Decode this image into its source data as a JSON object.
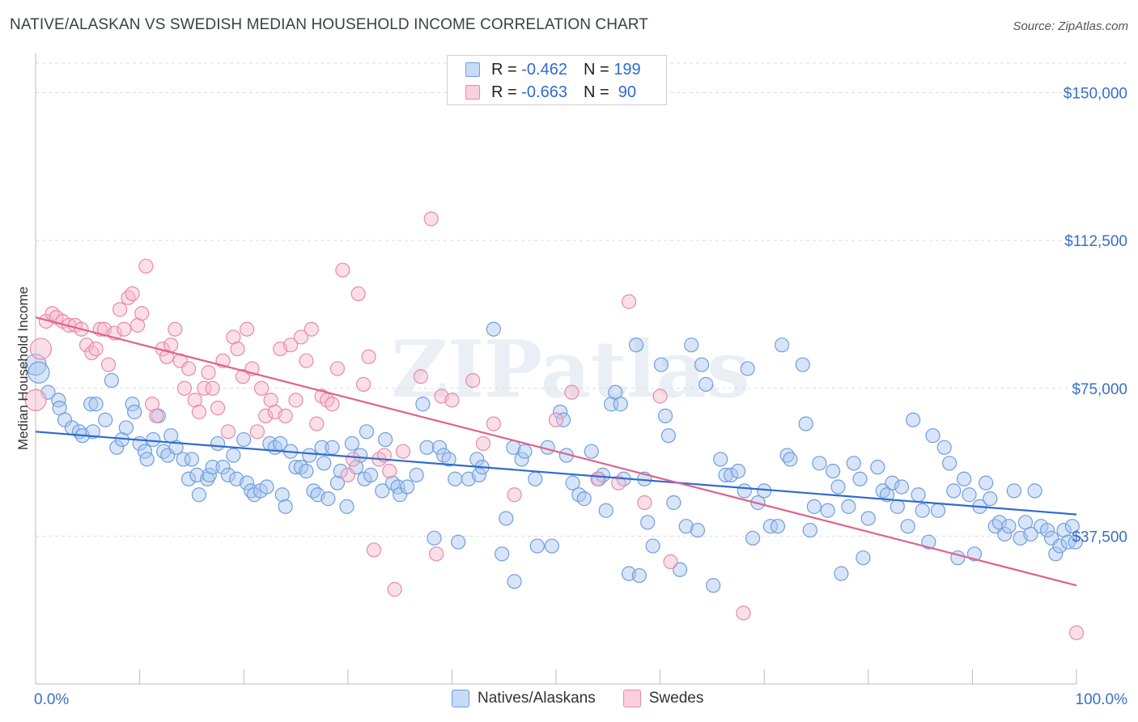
{
  "title": "NATIVE/ALASKAN VS SWEDISH MEDIAN HOUSEHOLD INCOME CORRELATION CHART",
  "source": "Source: ZipAtlas.com",
  "watermark": "ZIPatlas",
  "legend_top": [
    {
      "r_label": "R = ",
      "r_value": "-0.462",
      "n_label": "N = ",
      "n_value": "199",
      "color": "#a8c6f0",
      "border": "#6f9ee0"
    },
    {
      "r_label": "R = ",
      "r_value": "-0.663",
      "n_label": "N = ",
      "n_value": " 90",
      "color": "#f6b9cc",
      "border": "#e88aa8"
    }
  ],
  "legend_bottom": [
    {
      "label": "Natives/Alaskans",
      "color": "#a8c6f0",
      "border": "#6f9ee0"
    },
    {
      "label": "Swedes",
      "color": "#f6b9cc",
      "border": "#e88aa8"
    }
  ],
  "chart_data": {
    "type": "scatter",
    "title": "NATIVE/ALASKAN VS SWEDISH MEDIAN HOUSEHOLD INCOME CORRELATION CHART",
    "xlabel": "",
    "ylabel": "Median Household Income",
    "xlim": [
      0,
      100
    ],
    "ylim": [
      0,
      157500
    ],
    "x_tick_labels": [
      "0.0%",
      "100.0%"
    ],
    "y_ticks": [
      37500,
      75000,
      112500,
      150000
    ],
    "y_tick_labels": [
      "$37,500",
      "$75,000",
      "$112,500",
      "$150,000"
    ],
    "grid": "horizontal dashed",
    "legend_placement": "top-center and bottom",
    "series": [
      {
        "name": "Natives/Alaskans",
        "color": "#6f9ee0",
        "trend": {
          "x": [
            0,
            100
          ],
          "y": [
            64000,
            43000
          ],
          "color": "#2f6bd0"
        },
        "points": [
          [
            0,
            81000
          ],
          [
            0.3,
            79000
          ],
          [
            1.2,
            74000
          ],
          [
            2.2,
            72000
          ],
          [
            2.3,
            70000
          ],
          [
            2.8,
            67000
          ],
          [
            3.5,
            65000
          ],
          [
            4.2,
            64000
          ],
          [
            4.5,
            63000
          ],
          [
            5.3,
            71000
          ],
          [
            5.5,
            64000
          ],
          [
            5.8,
            71000
          ],
          [
            6.7,
            67000
          ],
          [
            7.3,
            77000
          ],
          [
            7.8,
            60000
          ],
          [
            8.3,
            62000
          ],
          [
            8.7,
            65000
          ],
          [
            9.3,
            71000
          ],
          [
            9.5,
            69000
          ],
          [
            10,
            61000
          ],
          [
            10.5,
            59000
          ],
          [
            10.7,
            57000
          ],
          [
            11.3,
            62000
          ],
          [
            11.8,
            68000
          ],
          [
            12.3,
            59000
          ],
          [
            12.7,
            58000
          ],
          [
            13,
            63000
          ],
          [
            13.5,
            60000
          ],
          [
            14.2,
            57000
          ],
          [
            14.7,
            52000
          ],
          [
            15,
            57000
          ],
          [
            15.5,
            53000
          ],
          [
            15.7,
            48000
          ],
          [
            16.5,
            52000
          ],
          [
            16.7,
            53000
          ],
          [
            17,
            55000
          ],
          [
            17.5,
            61000
          ],
          [
            18,
            55000
          ],
          [
            18.5,
            53000
          ],
          [
            19,
            58000
          ],
          [
            19.3,
            52000
          ],
          [
            20,
            62000
          ],
          [
            20.3,
            51000
          ],
          [
            20.7,
            49000
          ],
          [
            21,
            48000
          ],
          [
            21.6,
            49000
          ],
          [
            22.2,
            50000
          ],
          [
            22.5,
            61000
          ],
          [
            23,
            60000
          ],
          [
            23.5,
            61000
          ],
          [
            23.7,
            48000
          ],
          [
            24,
            45000
          ],
          [
            24.5,
            59000
          ],
          [
            25,
            55000
          ],
          [
            25.5,
            55000
          ],
          [
            26,
            54000
          ],
          [
            26.3,
            58000
          ],
          [
            26.7,
            49000
          ],
          [
            27.1,
            48000
          ],
          [
            27.5,
            60000
          ],
          [
            27.7,
            56000
          ],
          [
            28.1,
            47000
          ],
          [
            28.5,
            60000
          ],
          [
            29,
            51000
          ],
          [
            29.3,
            54000
          ],
          [
            29.9,
            45000
          ],
          [
            30.4,
            61000
          ],
          [
            30.8,
            55000
          ],
          [
            31.2,
            58000
          ],
          [
            31.6,
            52000
          ],
          [
            31.8,
            64000
          ],
          [
            32.2,
            53000
          ],
          [
            33.3,
            49000
          ],
          [
            33.6,
            62000
          ],
          [
            34.3,
            51000
          ],
          [
            34.8,
            50000
          ],
          [
            35,
            48000
          ],
          [
            35.7,
            50000
          ],
          [
            36.6,
            53000
          ],
          [
            37.2,
            71000
          ],
          [
            37.6,
            60000
          ],
          [
            38.3,
            37000
          ],
          [
            38.8,
            60000
          ],
          [
            39.2,
            58000
          ],
          [
            39.7,
            57000
          ],
          [
            40.3,
            52000
          ],
          [
            40.6,
            36000
          ],
          [
            41.6,
            52000
          ],
          [
            42.4,
            57000
          ],
          [
            42.6,
            53000
          ],
          [
            42.9,
            55000
          ],
          [
            44,
            90000
          ],
          [
            44.8,
            33000
          ],
          [
            45.2,
            42000
          ],
          [
            45.9,
            60000
          ],
          [
            46,
            26000
          ],
          [
            46.7,
            57000
          ],
          [
            47,
            59000
          ],
          [
            48,
            52000
          ],
          [
            48.2,
            35000
          ],
          [
            49.2,
            60000
          ],
          [
            49.6,
            35000
          ],
          [
            50.4,
            69000
          ],
          [
            50.7,
            67000
          ],
          [
            51,
            58000
          ],
          [
            51.6,
            51000
          ],
          [
            52.2,
            48000
          ],
          [
            52.7,
            47000
          ],
          [
            53.4,
            59000
          ],
          [
            54.1,
            52000
          ],
          [
            54.5,
            53000
          ],
          [
            54.8,
            44000
          ],
          [
            55.3,
            71000
          ],
          [
            55.7,
            74000
          ],
          [
            56.2,
            71000
          ],
          [
            56.5,
            52000
          ],
          [
            57,
            28000
          ],
          [
            57.7,
            86000
          ],
          [
            58,
            27500
          ],
          [
            58.5,
            52000
          ],
          [
            58.8,
            41000
          ],
          [
            59.3,
            35000
          ],
          [
            60.1,
            81000
          ],
          [
            60.5,
            68000
          ],
          [
            60.8,
            63000
          ],
          [
            61.3,
            46000
          ],
          [
            61.9,
            29000
          ],
          [
            62.5,
            40000
          ],
          [
            63,
            86000
          ],
          [
            63.6,
            39000
          ],
          [
            64,
            81000
          ],
          [
            64.4,
            76000
          ],
          [
            65.1,
            25000
          ],
          [
            65.8,
            57000
          ],
          [
            66.3,
            53000
          ],
          [
            66.8,
            53000
          ],
          [
            67.5,
            54000
          ],
          [
            68.1,
            49000
          ],
          [
            68.4,
            80000
          ],
          [
            68.9,
            37000
          ],
          [
            69.4,
            46000
          ],
          [
            70,
            49000
          ],
          [
            70.6,
            40000
          ],
          [
            71.3,
            40000
          ],
          [
            71.7,
            86000
          ],
          [
            72.2,
            58000
          ],
          [
            72.5,
            57000
          ],
          [
            73.7,
            81000
          ],
          [
            74,
            66000
          ],
          [
            74.4,
            39000
          ],
          [
            74.8,
            45000
          ],
          [
            75.3,
            56000
          ],
          [
            76.1,
            44000
          ],
          [
            76.6,
            54000
          ],
          [
            77.1,
            50000
          ],
          [
            77.4,
            28000
          ],
          [
            78.1,
            45000
          ],
          [
            78.6,
            56000
          ],
          [
            79.2,
            52000
          ],
          [
            79.5,
            32000
          ],
          [
            80,
            42000
          ],
          [
            80.9,
            55000
          ],
          [
            81.4,
            49000
          ],
          [
            81.8,
            48000
          ],
          [
            82.3,
            51000
          ],
          [
            82.8,
            45000
          ],
          [
            83.2,
            50000
          ],
          [
            83.8,
            40000
          ],
          [
            84.3,
            67000
          ],
          [
            84.8,
            48000
          ],
          [
            85.2,
            44000
          ],
          [
            85.8,
            36000
          ],
          [
            86.2,
            63000
          ],
          [
            86.7,
            44000
          ],
          [
            87.3,
            60000
          ],
          [
            87.8,
            56000
          ],
          [
            88.2,
            49000
          ],
          [
            88.6,
            32000
          ],
          [
            89.2,
            52000
          ],
          [
            89.7,
            48000
          ],
          [
            90.2,
            33000
          ],
          [
            90.7,
            45000
          ],
          [
            91.3,
            51000
          ],
          [
            91.7,
            47000
          ],
          [
            92.2,
            40000
          ],
          [
            92.6,
            41000
          ],
          [
            93.1,
            38000
          ],
          [
            93.5,
            40000
          ],
          [
            94,
            49000
          ],
          [
            94.6,
            37000
          ],
          [
            95.1,
            41000
          ],
          [
            95.6,
            38000
          ],
          [
            96,
            49000
          ],
          [
            96.6,
            40000
          ],
          [
            97.2,
            39000
          ],
          [
            97.6,
            37000
          ],
          [
            98,
            33000
          ],
          [
            98.4,
            35000
          ],
          [
            98.8,
            39000
          ],
          [
            99.2,
            36000
          ],
          [
            99.6,
            40000
          ],
          [
            99.9,
            36000
          ]
        ]
      },
      {
        "name": "Swedes",
        "color": "#e88aa8",
        "trend": {
          "x": [
            0,
            100
          ],
          "y": [
            93000,
            25000
          ],
          "color": "#e0628e"
        },
        "points": [
          [
            0,
            72000
          ],
          [
            0.5,
            85000
          ],
          [
            1,
            92000
          ],
          [
            1.6,
            94000
          ],
          [
            2,
            93000
          ],
          [
            2.6,
            92000
          ],
          [
            3.2,
            91000
          ],
          [
            3.8,
            91000
          ],
          [
            4.4,
            90000
          ],
          [
            4.9,
            86000
          ],
          [
            5.4,
            84000
          ],
          [
            5.8,
            85000
          ],
          [
            6.2,
            90000
          ],
          [
            6.6,
            90000
          ],
          [
            7,
            81000
          ],
          [
            7.6,
            89000
          ],
          [
            8.1,
            95000
          ],
          [
            8.5,
            90000
          ],
          [
            8.9,
            98000
          ],
          [
            9.3,
            99000
          ],
          [
            9.8,
            91000
          ],
          [
            10.2,
            94000
          ],
          [
            10.6,
            106000
          ],
          [
            11.2,
            71000
          ],
          [
            11.6,
            68000
          ],
          [
            12.2,
            85000
          ],
          [
            12.6,
            83000
          ],
          [
            13,
            86000
          ],
          [
            13.4,
            90000
          ],
          [
            13.9,
            82000
          ],
          [
            14.3,
            75000
          ],
          [
            14.7,
            80000
          ],
          [
            15.3,
            72000
          ],
          [
            15.7,
            69000
          ],
          [
            16.2,
            75000
          ],
          [
            16.6,
            79000
          ],
          [
            17,
            75000
          ],
          [
            17.5,
            70000
          ],
          [
            18,
            82000
          ],
          [
            18.5,
            64000
          ],
          [
            19,
            88000
          ],
          [
            19.4,
            85000
          ],
          [
            19.9,
            78000
          ],
          [
            20.3,
            90000
          ],
          [
            20.8,
            80000
          ],
          [
            21.3,
            64000
          ],
          [
            21.7,
            75000
          ],
          [
            22.1,
            68000
          ],
          [
            22.6,
            72000
          ],
          [
            23,
            69000
          ],
          [
            23.5,
            85000
          ],
          [
            24,
            68000
          ],
          [
            24.5,
            86000
          ],
          [
            25,
            72000
          ],
          [
            25.5,
            88000
          ],
          [
            26,
            82000
          ],
          [
            26.5,
            90000
          ],
          [
            27,
            66000
          ],
          [
            27.5,
            73000
          ],
          [
            28,
            72000
          ],
          [
            28.5,
            71000
          ],
          [
            29,
            80000
          ],
          [
            29.5,
            105000
          ],
          [
            30,
            53000
          ],
          [
            30.5,
            57000
          ],
          [
            31,
            99000
          ],
          [
            31.5,
            76000
          ],
          [
            32,
            83000
          ],
          [
            32.5,
            34000
          ],
          [
            33,
            57000
          ],
          [
            33.5,
            58000
          ],
          [
            34,
            54000
          ],
          [
            34.5,
            24000
          ],
          [
            35.3,
            59000
          ],
          [
            37,
            78000
          ],
          [
            38,
            118000
          ],
          [
            38.5,
            33000
          ],
          [
            39,
            73000
          ],
          [
            40,
            72000
          ],
          [
            42,
            77000
          ],
          [
            43,
            61000
          ],
          [
            44,
            66000
          ],
          [
            46,
            48000
          ],
          [
            50,
            67000
          ],
          [
            51.5,
            74000
          ],
          [
            54,
            52000
          ],
          [
            56,
            51000
          ],
          [
            57,
            97000
          ],
          [
            58.5,
            46000
          ],
          [
            60,
            73000
          ],
          [
            61,
            31000
          ],
          [
            68,
            18000
          ],
          [
            100,
            13000
          ]
        ]
      }
    ]
  }
}
